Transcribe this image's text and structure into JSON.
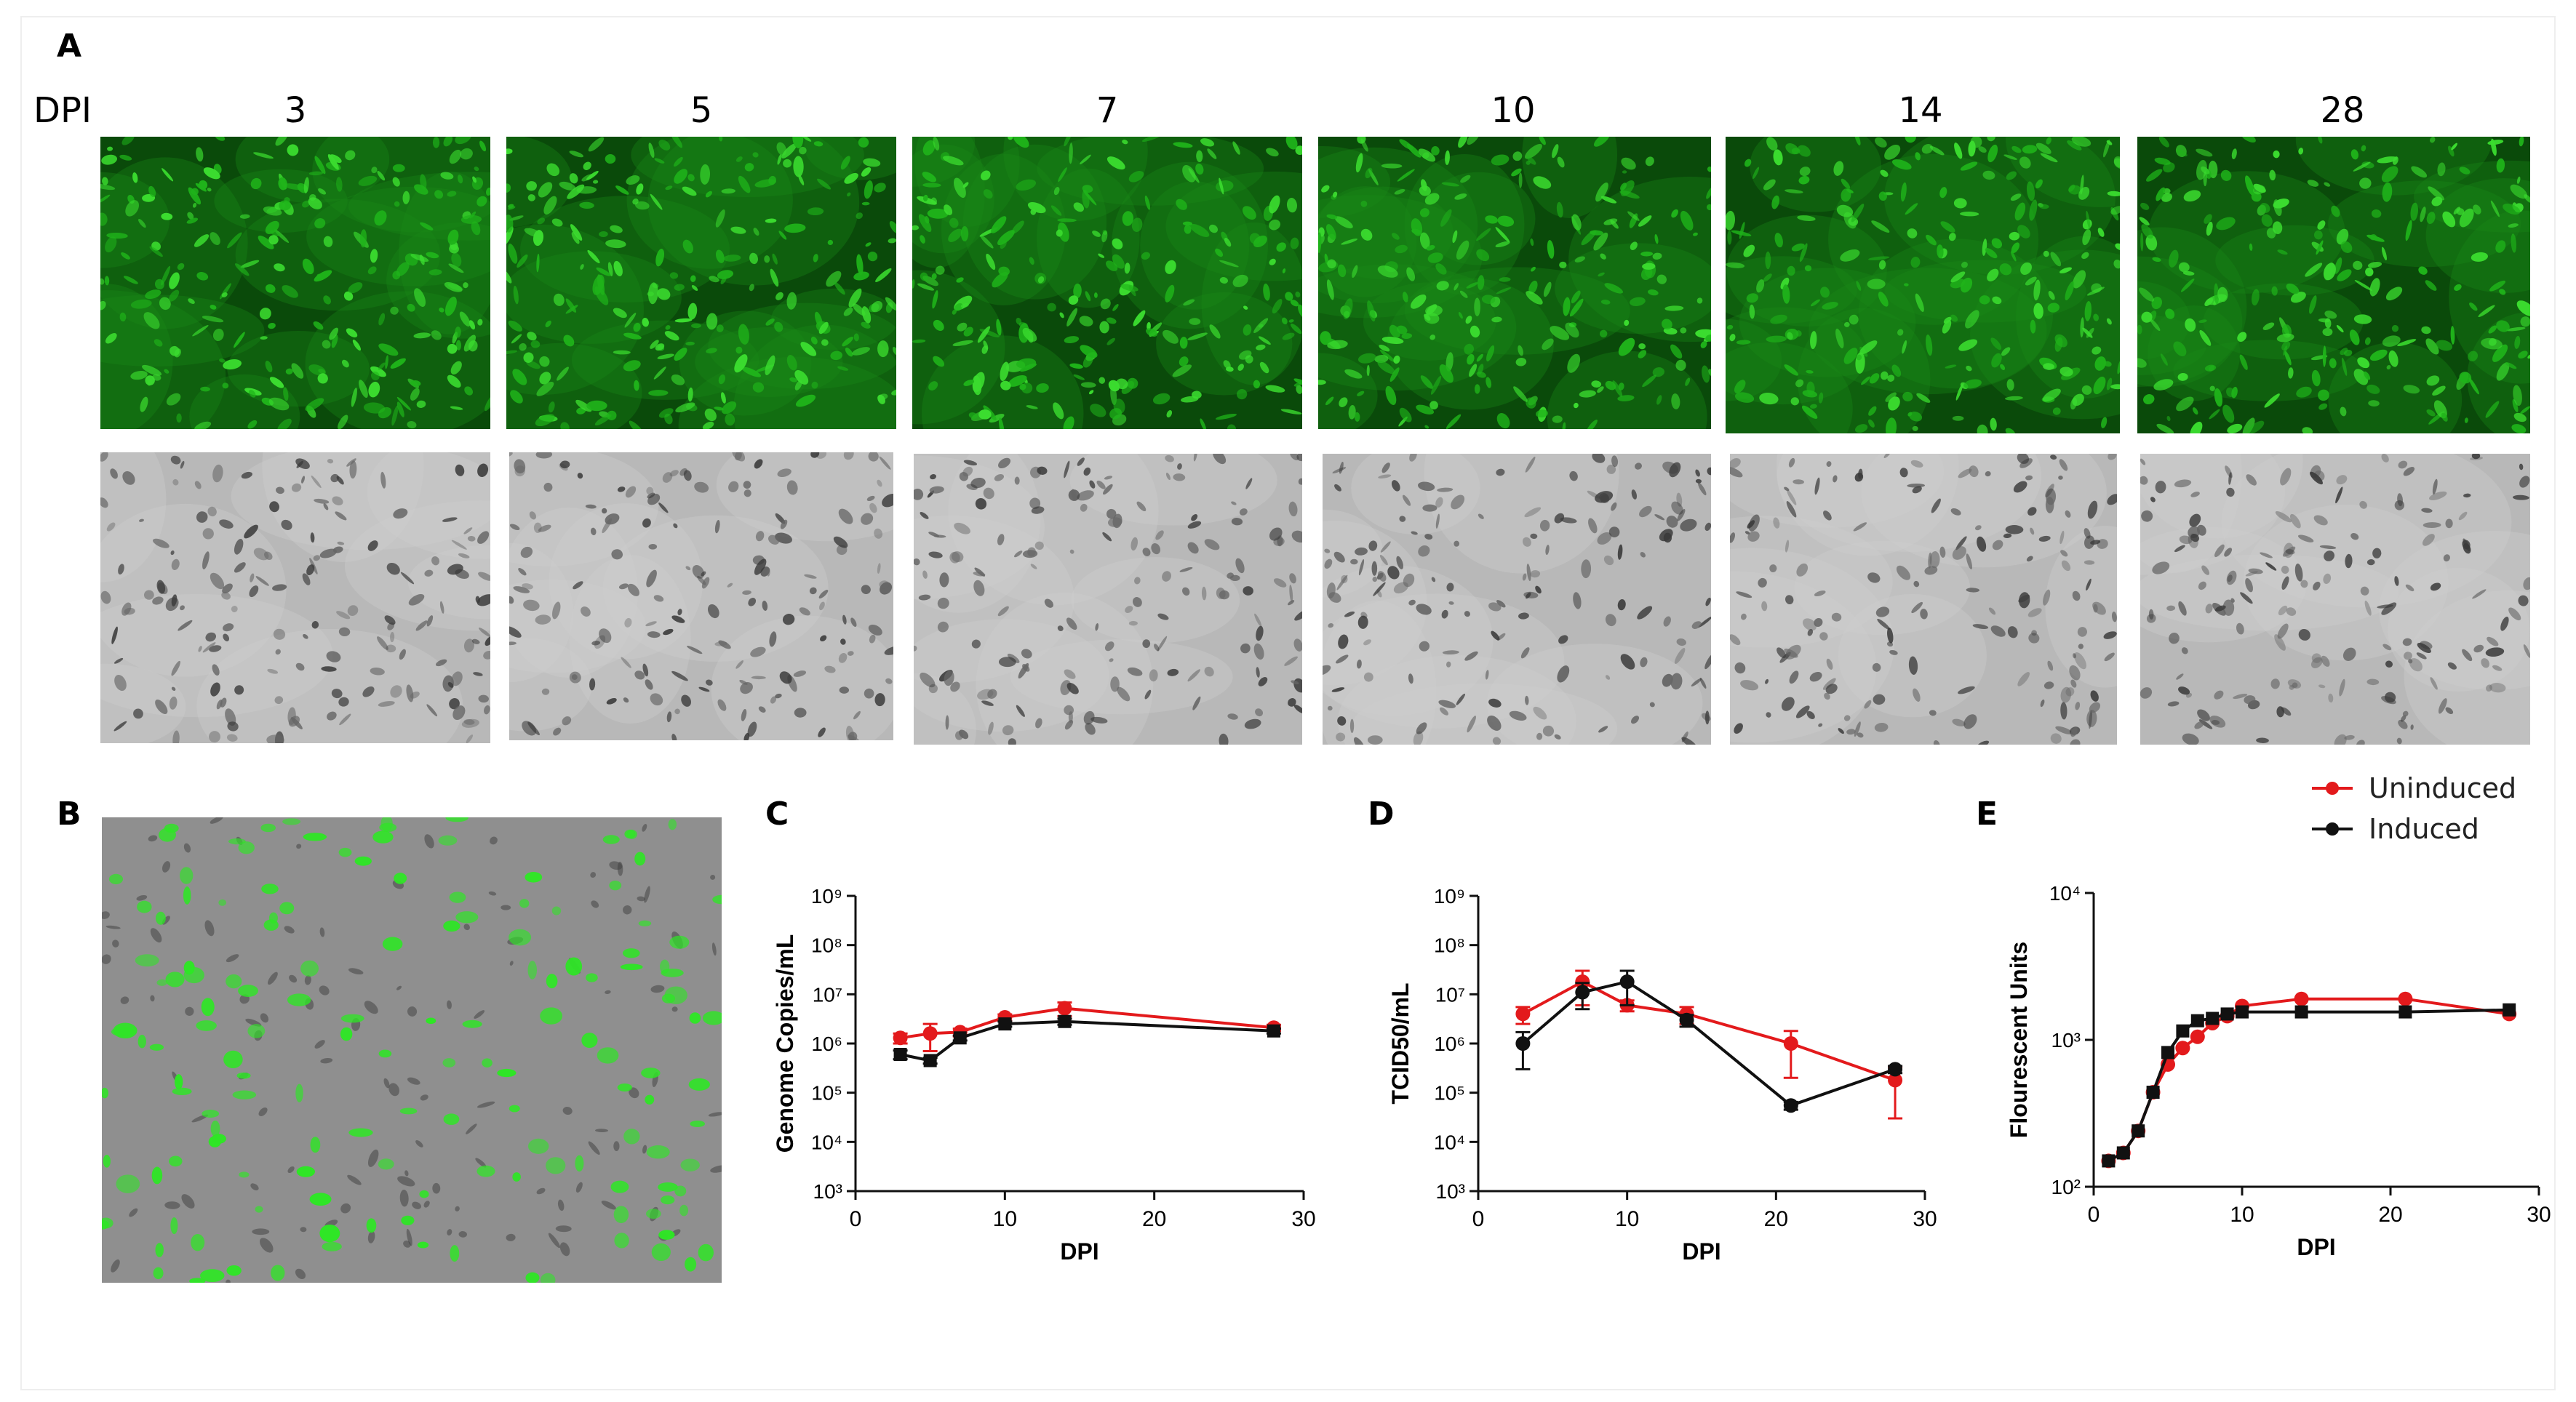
{
  "panels": {
    "a_label": "A",
    "b_label": "B",
    "c_label": "C",
    "d_label": "D",
    "e_label": "E"
  },
  "row_header": "DPI",
  "timepoints": [
    "3",
    "5",
    "7",
    "10",
    "14",
    "28"
  ],
  "colors": {
    "uninduced": "#e31a1c",
    "induced": "#111111",
    "gfp": "#22c41f",
    "gfp_dark": "#0a4a0a"
  },
  "legend": {
    "series": [
      {
        "name": "Uninduced",
        "color": "#e31a1c"
      },
      {
        "name": "Induced",
        "color": "#111111"
      }
    ]
  },
  "chart_data": [
    {
      "id": "C",
      "type": "line",
      "ylabel": "Genome Copies/mL",
      "xlabel": "DPI",
      "scale_y": "log",
      "xlim": [
        0,
        30
      ],
      "ylim": [
        1000,
        1000000000
      ],
      "x_ticks": [
        0,
        10,
        20,
        30
      ],
      "y_tick_exponents": [
        3,
        4,
        5,
        6,
        7,
        8,
        9
      ],
      "series": [
        {
          "name": "Uninduced",
          "marker": "circle",
          "x": [
            3,
            5,
            7,
            10,
            14,
            28
          ],
          "y": [
            1300000,
            1600000,
            1700000,
            3400000,
            5200000,
            2100000
          ],
          "err": [
            300000,
            900000,
            300000,
            500000,
            1600000,
            300000
          ]
        },
        {
          "name": "Induced",
          "marker": "square",
          "x": [
            3,
            5,
            7,
            10,
            14,
            28
          ],
          "y": [
            600000,
            450000,
            1300000,
            2500000,
            2800000,
            1800000
          ],
          "err": [
            120000,
            60000,
            150000,
            300000,
            400000,
            200000
          ]
        }
      ]
    },
    {
      "id": "D",
      "type": "line",
      "ylabel": "TCID50/mL",
      "xlabel": "DPI",
      "scale_y": "log",
      "xlim": [
        0,
        30
      ],
      "ylim": [
        1000,
        1000000000
      ],
      "x_ticks": [
        0,
        10,
        20,
        30
      ],
      "y_tick_exponents": [
        3,
        4,
        5,
        6,
        7,
        8,
        9
      ],
      "series": [
        {
          "name": "Uninduced",
          "marker": "circle",
          "x": [
            3,
            7,
            10,
            14,
            21,
            28
          ],
          "y": [
            4000000,
            18000000,
            6000000,
            4000000,
            1000000,
            180000
          ],
          "err": [
            1500000,
            12000000,
            1500000,
            1500000,
            800000,
            150000
          ]
        },
        {
          "name": "Induced",
          "marker": "circle",
          "x": [
            3,
            7,
            10,
            14,
            21,
            28
          ],
          "y": [
            1000000,
            11000000,
            18000000,
            3000000,
            55000,
            300000
          ],
          "err": [
            700000,
            6000000,
            12000000,
            800000,
            10000,
            50000
          ]
        }
      ]
    },
    {
      "id": "E",
      "type": "line",
      "ylabel": "Flourescent Units",
      "xlabel": "DPI",
      "scale_y": "log",
      "xlim": [
        0,
        30
      ],
      "ylim": [
        100,
        10000
      ],
      "x_ticks": [
        0,
        10,
        20,
        30
      ],
      "y_tick_exponents": [
        2,
        3,
        4
      ],
      "series": [
        {
          "name": "Uninduced",
          "marker": "circle",
          "x": [
            1,
            2,
            3,
            4,
            5,
            6,
            7,
            8,
            9,
            10,
            14,
            21,
            28
          ],
          "y": [
            150,
            170,
            240,
            440,
            680,
            880,
            1050,
            1300,
            1450,
            1700,
            1900,
            1900,
            1500
          ],
          "err": [
            0,
            0,
            0,
            0,
            0,
            0,
            0,
            0,
            0,
            0,
            0,
            0,
            0
          ]
        },
        {
          "name": "Induced",
          "marker": "square",
          "x": [
            1,
            2,
            3,
            4,
            5,
            6,
            7,
            8,
            9,
            10,
            14,
            21,
            28
          ],
          "y": [
            150,
            170,
            240,
            440,
            820,
            1150,
            1350,
            1400,
            1500,
            1550,
            1550,
            1550,
            1600
          ],
          "err": [
            0,
            0,
            0,
            0,
            0,
            0,
            0,
            0,
            0,
            0,
            0,
            0,
            0
          ]
        }
      ]
    }
  ]
}
